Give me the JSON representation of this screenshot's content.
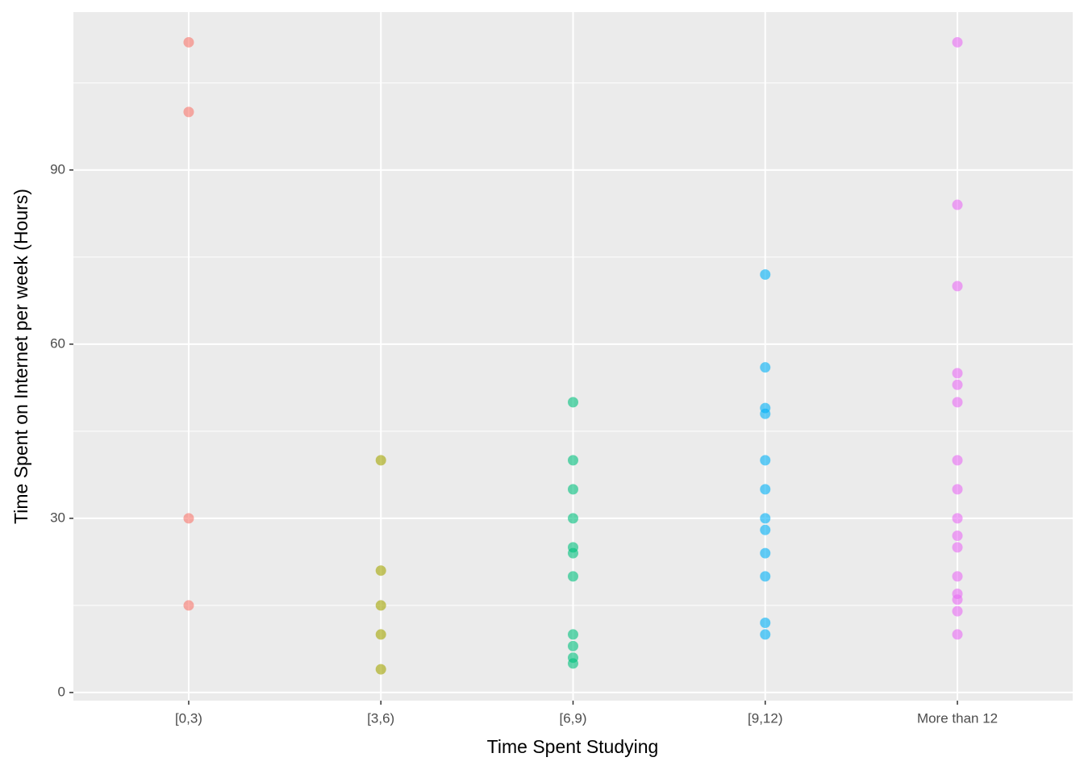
{
  "chart_data": {
    "type": "scatter",
    "x_label": "Time Spent Studying",
    "y_label": "Time Spent on Internet per week (Hours)",
    "categories": [
      "[0,3)",
      "[3,6)",
      "[6,9)",
      "[9,12)",
      "More than 12"
    ],
    "series": [
      {
        "color": "#F8766D",
        "values": [
          112,
          100,
          30,
          15
        ]
      },
      {
        "color": "#A3A500",
        "values": [
          40,
          21,
          15,
          10,
          4
        ]
      },
      {
        "color": "#00BF7D",
        "values": [
          50,
          40,
          35,
          30,
          25,
          24,
          20,
          10,
          8,
          6,
          5
        ]
      },
      {
        "color": "#00B0F6",
        "values": [
          72,
          56,
          49,
          48,
          40,
          35,
          30,
          28,
          24,
          20,
          12,
          10
        ]
      },
      {
        "color": "#E76BF3",
        "values": [
          112,
          84,
          70,
          55,
          53,
          50,
          40,
          35,
          30,
          27,
          25,
          20,
          17,
          16,
          14,
          10
        ]
      }
    ],
    "ylim": [
      -1.4,
      117.2
    ],
    "yticks": [
      0,
      30,
      60,
      90
    ],
    "grid": true
  }
}
